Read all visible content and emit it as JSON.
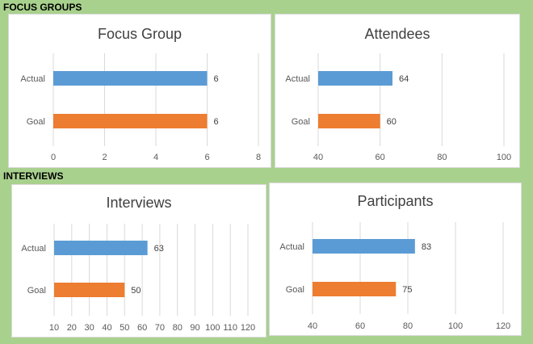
{
  "sections": {
    "focus_groups": "FOCUS GROUPS",
    "interviews": "INTERVIEWS"
  },
  "colors": {
    "actual": "#5b9bd5",
    "goal": "#ed7d31",
    "background": "#a9d18e"
  },
  "chart_data": [
    {
      "type": "bar",
      "orientation": "horizontal",
      "title": "Focus Group",
      "categories": [
        "Actual",
        "Goal"
      ],
      "values": [
        6,
        6
      ],
      "xlim": [
        0,
        8
      ],
      "xticks": [
        0,
        2,
        4,
        6,
        8
      ],
      "grid": true
    },
    {
      "type": "bar",
      "orientation": "horizontal",
      "title": "Attendees",
      "categories": [
        "Actual",
        "Goal"
      ],
      "values": [
        64,
        60
      ],
      "xlim": [
        40,
        100
      ],
      "xticks": [
        40,
        60,
        80,
        100
      ],
      "grid": true
    },
    {
      "type": "bar",
      "orientation": "horizontal",
      "title": "Interviews",
      "categories": [
        "Actual",
        "Goal"
      ],
      "values": [
        63,
        50
      ],
      "xlim": [
        10,
        120
      ],
      "xticks": [
        10,
        20,
        30,
        40,
        50,
        60,
        70,
        80,
        90,
        100,
        110,
        120
      ],
      "grid": true
    },
    {
      "type": "bar",
      "orientation": "horizontal",
      "title": "Participants",
      "categories": [
        "Actual",
        "Goal"
      ],
      "values": [
        83,
        75
      ],
      "xlim": [
        40,
        120
      ],
      "xticks": [
        40,
        60,
        80,
        100,
        120
      ],
      "grid": true
    }
  ]
}
